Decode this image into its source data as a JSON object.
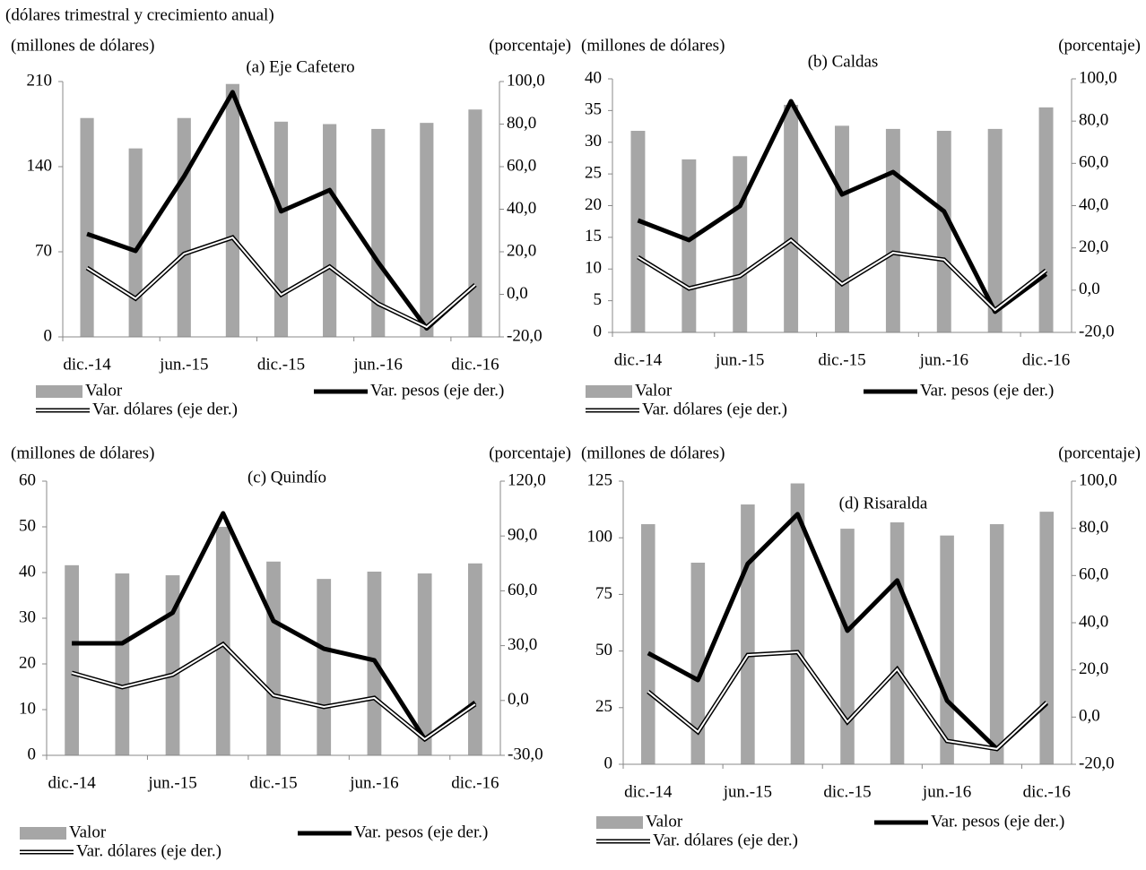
{
  "header": "(dólares trimestral y crecimiento anual)",
  "chart_data": [
    {
      "type": "bar_line",
      "title": "(a) Eje Cafetero",
      "y_label": "(millones de dólares)",
      "y2_label": "(porcentaje)",
      "categories": [
        "dic.-14",
        null,
        "jun.-15",
        null,
        "dic.-15",
        null,
        "jun.-16",
        null,
        "dic.-16"
      ],
      "ylim": [
        0,
        210
      ],
      "yticks": [
        0,
        70,
        140,
        210
      ],
      "y2lim": [
        -20,
        100
      ],
      "y2ticks": [
        {
          "value": -20,
          "label": "-20,0"
        },
        {
          "value": 0,
          "label": "0,0"
        },
        {
          "value": 20,
          "label": "20,0"
        },
        {
          "value": 40,
          "label": "40,0"
        },
        {
          "value": 60,
          "label": "60,0"
        },
        {
          "value": 80,
          "label": "80,0"
        },
        {
          "value": 100,
          "label": "100,0"
        }
      ],
      "series": [
        {
          "name": "Valor",
          "type": "bar",
          "color": "#a6a6a6",
          "values": [
            180,
            155,
            180,
            208,
            177,
            175,
            171,
            176,
            187
          ]
        },
        {
          "name": "Var. pesos (eje der.)",
          "type": "line",
          "axis": "y2",
          "color": "#000000",
          "values": [
            28.4,
            20.4,
            55.4,
            95,
            39,
            49,
            15,
            -16,
            4.4
          ]
        },
        {
          "name": "Var. dólares (eje der.)",
          "type": "double_line",
          "axis": "y2",
          "color": "#000000",
          "values": [
            12.4,
            -2,
            19,
            26.7,
            -0.2,
            13,
            -4.4,
            -15.4,
            4.4
          ]
        }
      ]
    },
    {
      "type": "bar_line",
      "title": "(b) Caldas",
      "y_label": "(millones de dólares)",
      "y2_label": "(porcentaje)",
      "categories": [
        "dic.-14",
        null,
        "jun.-15",
        null,
        "dic.-15",
        null,
        "jun.-16",
        null,
        "dic.-16"
      ],
      "ylim": [
        0,
        40
      ],
      "yticks": [
        0,
        5,
        10,
        15,
        20,
        25,
        30,
        35,
        40
      ],
      "y2lim": [
        -20,
        100
      ],
      "y2ticks": [
        {
          "value": -20,
          "label": "-20,0"
        },
        {
          "value": 0,
          "label": "0,0"
        },
        {
          "value": 20,
          "label": "20,0"
        },
        {
          "value": 40,
          "label": "40,0"
        },
        {
          "value": 60,
          "label": "60,0"
        },
        {
          "value": 80,
          "label": "80,0"
        },
        {
          "value": 100,
          "label": "100,0"
        }
      ],
      "series": [
        {
          "name": "Valor",
          "type": "bar",
          "color": "#a6a6a6",
          "values": [
            31.8,
            27.3,
            27.8,
            35.9,
            32.6,
            32.1,
            31.8,
            32.1,
            35.5
          ]
        },
        {
          "name": "Var. pesos (eje der.)",
          "type": "line",
          "axis": "y2",
          "color": "#000000",
          "values": [
            33,
            23.7,
            39.8,
            89.4,
            45.3,
            55.9,
            37.3,
            -10.2,
            7.6
          ]
        },
        {
          "name": "Var. dólares (eje der.)",
          "type": "double_line",
          "axis": "y2",
          "color": "#000000",
          "values": [
            15.6,
            0.8,
            6.7,
            23.7,
            2.9,
            17.7,
            14.4,
            -9.4,
            9.3
          ]
        }
      ]
    },
    {
      "type": "bar_line",
      "title": "(c) Quindío",
      "y_label": "(millones de dólares)",
      "y2_label": "(porcentaje)",
      "categories": [
        "dic.-14",
        null,
        "jun.-15",
        null,
        "dic.-15",
        null,
        "jun.-16",
        null,
        "dic.-16"
      ],
      "ylim": [
        0,
        60
      ],
      "yticks": [
        0,
        10,
        20,
        30,
        40,
        50,
        60
      ],
      "y2lim": [
        -30,
        120
      ],
      "y2ticks": [
        {
          "value": -30,
          "label": "-30,0"
        },
        {
          "value": 0,
          "label": "0,0"
        },
        {
          "value": 30,
          "label": "30,0"
        },
        {
          "value": 60,
          "label": "60,0"
        },
        {
          "value": 90,
          "label": "90,0"
        },
        {
          "value": 120,
          "label": "120,0"
        }
      ],
      "series": [
        {
          "name": "Valor",
          "type": "bar",
          "color": "#a6a6a6",
          "values": [
            41.6,
            39.8,
            39.4,
            50,
            42.4,
            38.6,
            40.2,
            39.8,
            42
          ]
        },
        {
          "name": "Var. pesos (eje der.)",
          "type": "line",
          "axis": "y2",
          "color": "#000000",
          "values": [
            31.3,
            31.3,
            48,
            102.4,
            43.5,
            28.3,
            22,
            -21.2,
            -1.1
          ]
        },
        {
          "name": "Var. dólares (eje der.)",
          "type": "double_line",
          "axis": "y2",
          "color": "#000000",
          "values": [
            15.1,
            7.3,
            14.1,
            30.8,
            2.8,
            -3.5,
            1.4,
            -21.2,
            -2.1
          ]
        }
      ]
    },
    {
      "type": "bar_line",
      "title": "(d) Risaralda",
      "y_label": "(millones de dólares)",
      "y2_label": "(porcentaje)",
      "categories": [
        "dic.-14",
        null,
        "jun.-15",
        null,
        "dic.-15",
        null,
        "jun.-16",
        null,
        "dic.-16"
      ],
      "ylim": [
        0,
        125
      ],
      "yticks": [
        0,
        25,
        50,
        75,
        100,
        125
      ],
      "y2lim": [
        -20,
        100
      ],
      "y2ticks": [
        {
          "value": -20,
          "label": "-20,0"
        },
        {
          "value": 0,
          "label": "0,0"
        },
        {
          "value": 20,
          "label": "20,0"
        },
        {
          "value": 40,
          "label": "40,0"
        },
        {
          "value": 60,
          "label": "60,0"
        },
        {
          "value": 80,
          "label": "80,0"
        },
        {
          "value": 100,
          "label": "100,0"
        }
      ],
      "series": [
        {
          "name": "Valor",
          "type": "bar",
          "color": "#a6a6a6",
          "values": [
            106,
            89,
            114.7,
            124,
            104,
            106.8,
            101,
            106,
            111.5
          ]
        },
        {
          "name": "Var. pesos (eje der.)",
          "type": "line",
          "axis": "y2",
          "color": "#000000",
          "values": [
            27.1,
            15.7,
            65,
            86,
            36.6,
            57.9,
            7,
            -13.5,
            5.8
          ]
        },
        {
          "name": "Var. dólares (eje der.)",
          "type": "double_line",
          "axis": "y2",
          "color": "#000000",
          "values": [
            10.8,
            -6.3,
            26.3,
            27.5,
            -2.1,
            20.3,
            -10.1,
            -13.5,
            6.2
          ]
        }
      ]
    }
  ]
}
